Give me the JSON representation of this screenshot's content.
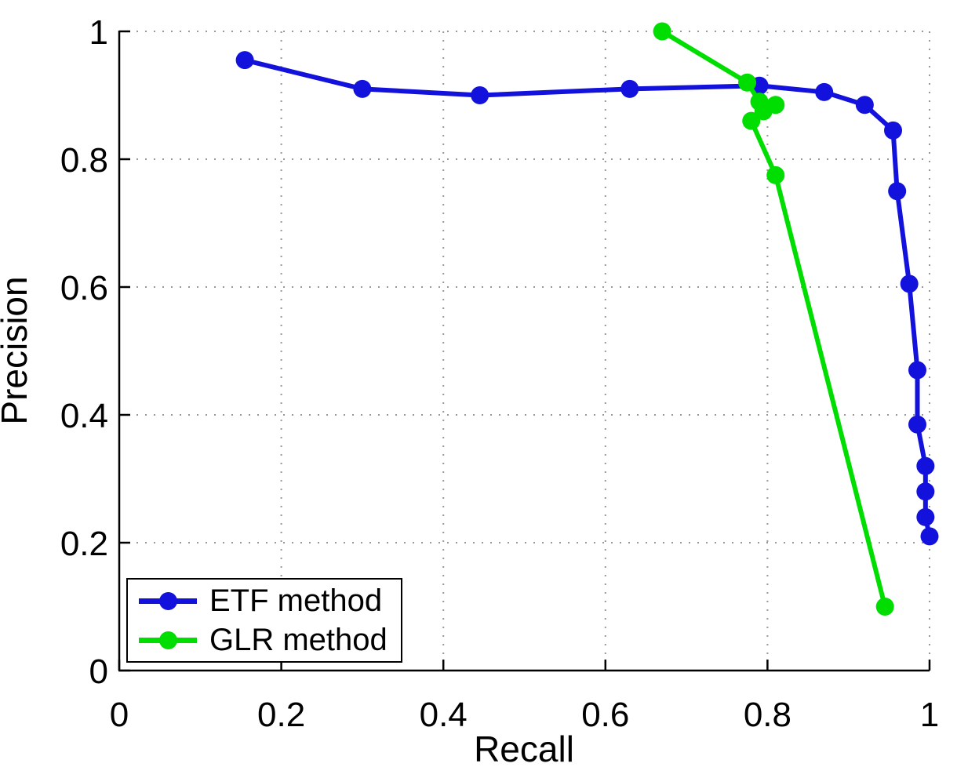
{
  "chart_data": {
    "type": "line",
    "title": "",
    "xlabel": "Recall",
    "ylabel": "Precision",
    "xlim": [
      0,
      1
    ],
    "ylim": [
      0,
      1
    ],
    "grid": {
      "visible": true,
      "style": "dotted",
      "color": "#999999"
    },
    "xticks": {
      "values": [
        0,
        0.2,
        0.4,
        0.6,
        0.8,
        1
      ],
      "labels": [
        "0",
        "0.2",
        "0.4",
        "0.6",
        "0.8",
        "1"
      ]
    },
    "yticks": {
      "values": [
        0,
        0.2,
        0.4,
        0.6,
        0.8,
        1
      ],
      "labels": [
        "0",
        "0.2",
        "0.4",
        "0.6",
        "0.8",
        "1"
      ]
    },
    "legend": {
      "position": "bottom-left"
    },
    "series": [
      {
        "name": "ETF method",
        "color": "#1212dc",
        "marker": "circle",
        "points": [
          [
            0.155,
            0.955
          ],
          [
            0.3,
            0.91
          ],
          [
            0.445,
            0.9
          ],
          [
            0.63,
            0.91
          ],
          [
            0.79,
            0.915
          ],
          [
            0.87,
            0.905
          ],
          [
            0.92,
            0.885
          ],
          [
            0.955,
            0.845
          ],
          [
            0.96,
            0.75
          ],
          [
            0.975,
            0.605
          ],
          [
            0.985,
            0.47
          ],
          [
            0.985,
            0.385
          ],
          [
            0.995,
            0.32
          ],
          [
            0.995,
            0.28
          ],
          [
            0.995,
            0.24
          ],
          [
            1.0,
            0.21
          ]
        ]
      },
      {
        "name": "GLR method",
        "color": "#00dd00",
        "marker": "circle",
        "points": [
          [
            0.67,
            1.0
          ],
          [
            0.775,
            0.92
          ],
          [
            0.79,
            0.89
          ],
          [
            0.81,
            0.885
          ],
          [
            0.795,
            0.875
          ],
          [
            0.78,
            0.86
          ],
          [
            0.81,
            0.775
          ],
          [
            0.945,
            0.1
          ]
        ]
      }
    ]
  }
}
